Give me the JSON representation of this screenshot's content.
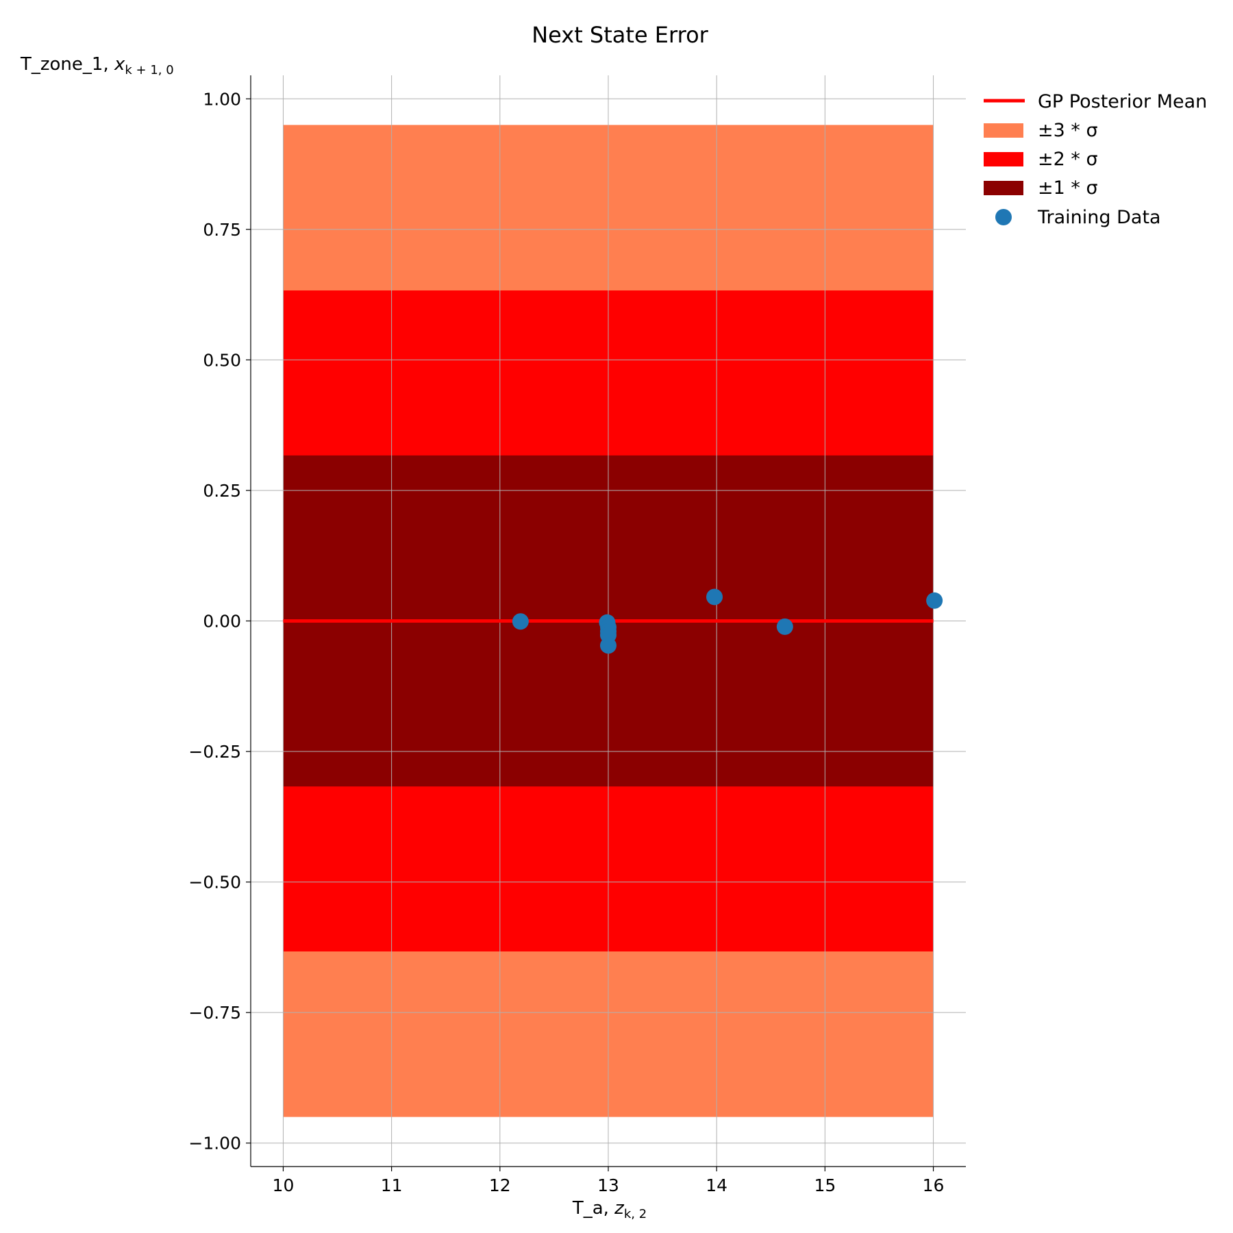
{
  "chart_data": {
    "type": "line",
    "title": "Next State Error",
    "xlabel": "T_a, ",
    "xlabel_math": "z",
    "xlabel_sub": "k, 2",
    "ylabel": "T_zone_1, ",
    "ylabel_math": "x",
    "ylabel_sub": "k + 1, 0",
    "xlim": [
      9.7,
      16.3
    ],
    "ylim": [
      -1.045,
      1.045
    ],
    "xticks": [
      10,
      11,
      12,
      13,
      14,
      15,
      16
    ],
    "xtick_labels": [
      "10",
      "11",
      "12",
      "13",
      "14",
      "15",
      "16"
    ],
    "yticks": [
      1.0,
      0.75,
      0.5,
      0.25,
      0.0,
      -0.25,
      -0.5,
      -0.75,
      -1.0
    ],
    "ytick_labels": [
      "1.00",
      "0.75",
      "0.50",
      "0.25",
      "0.00",
      "−0.25",
      "−0.50",
      "−0.75",
      "−1.00"
    ],
    "grid": true,
    "legend_position": "outside-top-right",
    "mean": {
      "name": "GP Posterior Mean",
      "x": [
        10,
        16
      ],
      "y": [
        0.0,
        0.0
      ],
      "color": "#ff0000"
    },
    "bands": [
      {
        "name": "±3 * σ",
        "color": "#ff7f50",
        "x": [
          10,
          16
        ],
        "lower": -0.95,
        "upper": 0.95
      },
      {
        "name": "±2 * σ",
        "color": "#ff0000",
        "x": [
          10,
          16
        ],
        "lower": -0.633,
        "upper": 0.633
      },
      {
        "name": "±1 * σ",
        "color": "#8b0000",
        "x": [
          10,
          16
        ],
        "lower": -0.317,
        "upper": 0.317
      }
    ],
    "scatter": {
      "name": "Training Data",
      "color": "#1f77b4",
      "x": [
        12.19,
        12.99,
        13.0,
        13.0,
        13.0,
        13.0,
        13.98,
        14.63,
        16.01
      ],
      "y": [
        -0.001,
        -0.003,
        -0.012,
        -0.02,
        -0.027,
        -0.047,
        0.046,
        -0.011,
        0.039
      ]
    }
  }
}
